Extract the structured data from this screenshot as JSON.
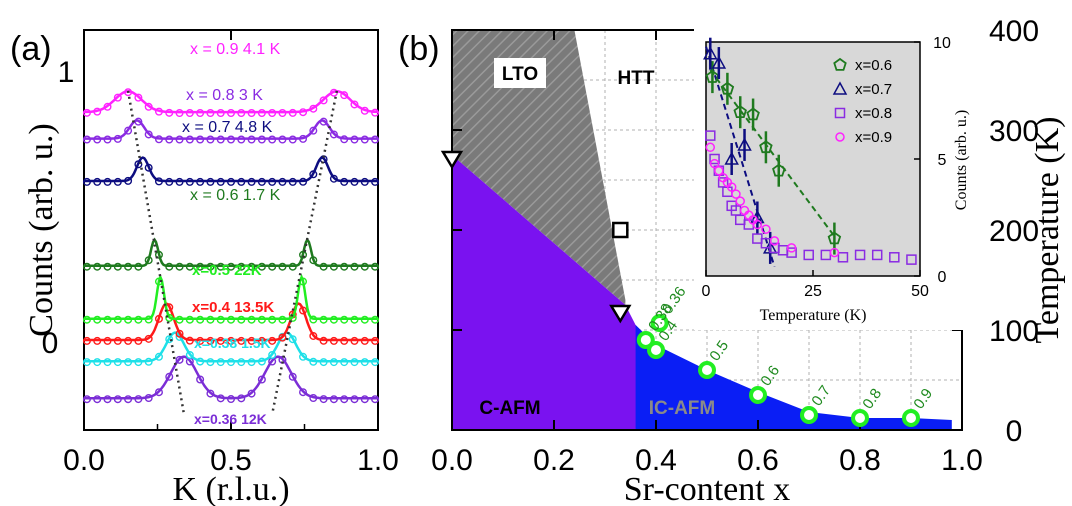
{
  "chart_data": [
    {
      "panel": "(a)",
      "type": "line",
      "xlabel": "K (r.l.u.)",
      "ylabel": "Counts (arb. u.)",
      "xlim": [
        0.0,
        1.0
      ],
      "xticks": [
        "0.0",
        "0.5",
        "1.0"
      ],
      "ytick_labels": [
        "0",
        "1"
      ],
      "series": [
        {
          "name": "x=0.36 12K",
          "color": "#7b2ed6",
          "offset": -0.22,
          "peaks": [
            0.34,
            0.66
          ],
          "width": 0.045,
          "amp": 0.16,
          "base": 0.0
        },
        {
          "name": "x=0.38 1.5K",
          "color": "#1ee0e8",
          "offset": -0.08,
          "peaks": [
            0.31,
            0.69
          ],
          "width": 0.03,
          "amp": 0.11,
          "base": 0.0
        },
        {
          "name": "x=0.4 13.5K",
          "color": "#ff1a1a",
          "offset": 0.0,
          "peaks": [
            0.28,
            0.73
          ],
          "width": 0.025,
          "amp": 0.14,
          "base": 0.0
        },
        {
          "name": "x=0.5 22K",
          "color": "#22ee22",
          "offset": 0.08,
          "peaks": [
            0.26,
            0.74
          ],
          "width": 0.012,
          "amp": 0.16,
          "base": 0.0
        },
        {
          "name": "x = 0.6  1.7 K",
          "color": "#1f7a1f",
          "offset": 0.28,
          "peaks": [
            0.24,
            0.76
          ],
          "width": 0.012,
          "amp": 0.1,
          "base": 0.0
        },
        {
          "name": "x = 0.7  4.8 K",
          "color": "#0d0d80",
          "offset": 0.6,
          "peaks": [
            0.2,
            0.81
          ],
          "width": 0.02,
          "amp": 0.09,
          "base": 0.0
        },
        {
          "name": "x = 0.8  3 K",
          "color": "#8a2be2",
          "offset": 0.76,
          "peaks": [
            0.18,
            0.81
          ],
          "width": 0.025,
          "amp": 0.07,
          "base": 0.0
        },
        {
          "name": "x = 0.9  4.1 K",
          "color": "#ff22ff",
          "offset": 0.86,
          "peaks": [
            0.15,
            0.86
          ],
          "width": 0.045,
          "amp": 0.08,
          "base": 0.0
        }
      ],
      "guide_lines": [
        {
          "points": [
            [
              0.15,
              0.94
            ],
            [
              0.34,
              -0.28
            ]
          ]
        },
        {
          "points": [
            [
              0.86,
              0.94
            ],
            [
              0.64,
              -0.28
            ]
          ]
        }
      ]
    },
    {
      "panel": "(b)",
      "type": "scatter",
      "xlabel": "Sr-content x",
      "ylabel": "Temperature (K)",
      "xlim": [
        0.0,
        1.0
      ],
      "ylim": [
        0,
        400
      ],
      "xticks": [
        "0.0",
        "0.2",
        "0.4",
        "0.6",
        "0.8",
        "1.0"
      ],
      "yticks": [
        "0",
        "100",
        "200",
        "300",
        "400"
      ],
      "regions": [
        "LTO",
        "HTT",
        "C-AFM",
        "IC-AFM"
      ],
      "phase_boundaries": {
        "LTO_HTT": [
          [
            0.24,
            400
          ],
          [
            0.34,
            130
          ]
        ],
        "C_AFM": [
          [
            0.0,
            275
          ],
          [
            0.34,
            125
          ],
          [
            0.36,
            105
          ],
          [
            0.4,
            85
          ]
        ],
        "IC_AFM": [
          [
            0.36,
            105
          ],
          [
            0.4,
            85
          ],
          [
            0.5,
            60
          ],
          [
            0.6,
            38
          ],
          [
            0.7,
            18
          ],
          [
            0.8,
            12
          ],
          [
            0.9,
            12
          ],
          [
            0.98,
            10
          ]
        ]
      },
      "triangle_points": [
        {
          "x": 0.0,
          "y": 272
        },
        {
          "x": 0.33,
          "y": 118
        }
      ],
      "square_points": [
        {
          "x": 0.33,
          "y": 200
        }
      ],
      "green_circles": [
        {
          "x": 0.36,
          "y": 107,
          "label": "0.36"
        },
        {
          "x": 0.38,
          "y": 90,
          "label": "0.38"
        },
        {
          "x": 0.4,
          "y": 80,
          "label": "0.4"
        },
        {
          "x": 0.5,
          "y": 60,
          "label": "0.5"
        },
        {
          "x": 0.6,
          "y": 35,
          "label": "0.6"
        },
        {
          "x": 0.7,
          "y": 15,
          "label": "0.7"
        },
        {
          "x": 0.8,
          "y": 12,
          "label": "0.8"
        },
        {
          "x": 0.9,
          "y": 12,
          "label": "0.9"
        }
      ]
    },
    {
      "panel": "inset",
      "type": "scatter",
      "xlabel": "Temperature (K)",
      "ylabel": "Counts (arb. u.)",
      "xlim": [
        0,
        50
      ],
      "ylim": [
        0,
        10
      ],
      "xticks": [
        "0",
        "25",
        "50"
      ],
      "yticks": [
        "0",
        "5",
        "10"
      ],
      "legend_position": "top-right",
      "series": [
        {
          "name": "x=0.6",
          "marker": "pentagon",
          "color": "#1f7a1f",
          "x": [
            1.5,
            5,
            8,
            11,
            14,
            17,
            30
          ],
          "y": [
            8.5,
            8.0,
            7.0,
            6.9,
            5.5,
            4.5,
            1.6
          ]
        },
        {
          "name": "x=0.7",
          "marker": "triangle",
          "color": "#0d0d80",
          "x": [
            1,
            3,
            6,
            9,
            12,
            15
          ],
          "y": [
            9.5,
            9.1,
            5.0,
            5.6,
            2.5,
            1.2
          ]
        },
        {
          "name": "x=0.8",
          "marker": "square",
          "color": "#8a2be2",
          "x": [
            1,
            2,
            3,
            4,
            5,
            6,
            7,
            8,
            10,
            12,
            14,
            16,
            18,
            20,
            24,
            28,
            32,
            36,
            40,
            44,
            48
          ],
          "y": [
            6.0,
            5.0,
            4.5,
            4.0,
            3.6,
            3.0,
            2.8,
            2.4,
            2.2,
            1.6,
            1.4,
            1.2,
            1.1,
            1.0,
            0.9,
            0.9,
            0.8,
            0.9,
            0.9,
            0.8,
            0.7
          ]
        },
        {
          "name": "x=0.9",
          "marker": "circle",
          "color": "#ff22ff",
          "x": [
            1,
            2,
            3,
            4,
            5,
            6,
            7,
            8,
            9,
            10,
            11,
            12,
            14,
            16,
            20,
            30
          ],
          "y": [
            5.5,
            4.8,
            4.5,
            4.2,
            4.0,
            3.8,
            3.5,
            3.2,
            2.8,
            2.6,
            2.4,
            2.2,
            2.0,
            1.5,
            1.2,
            1.0
          ]
        }
      ],
      "guide_lines": [
        {
          "color": "#1f7a1f",
          "points": [
            [
              1,
              8.8
            ],
            [
              30,
              1.7
            ]
          ]
        },
        {
          "color": "#0d0d80",
          "points": [
            [
              0,
              9.8
            ],
            [
              16,
              0.4
            ]
          ]
        }
      ]
    }
  ],
  "panel_labels": {
    "a": "(a)",
    "b": "(b)"
  },
  "labels": {
    "x_labels_a": [
      "x=0.36 12K",
      "x=0.38 1.5K",
      "x=0.4 13.5K",
      "x=0.5 22K"
    ],
    "x_labels_b": [
      "x = 0.6  1.7 K",
      "x = 0.7  4.8 K",
      "x = 0.8  3 K",
      "x = 0.9  4.1 K"
    ]
  }
}
